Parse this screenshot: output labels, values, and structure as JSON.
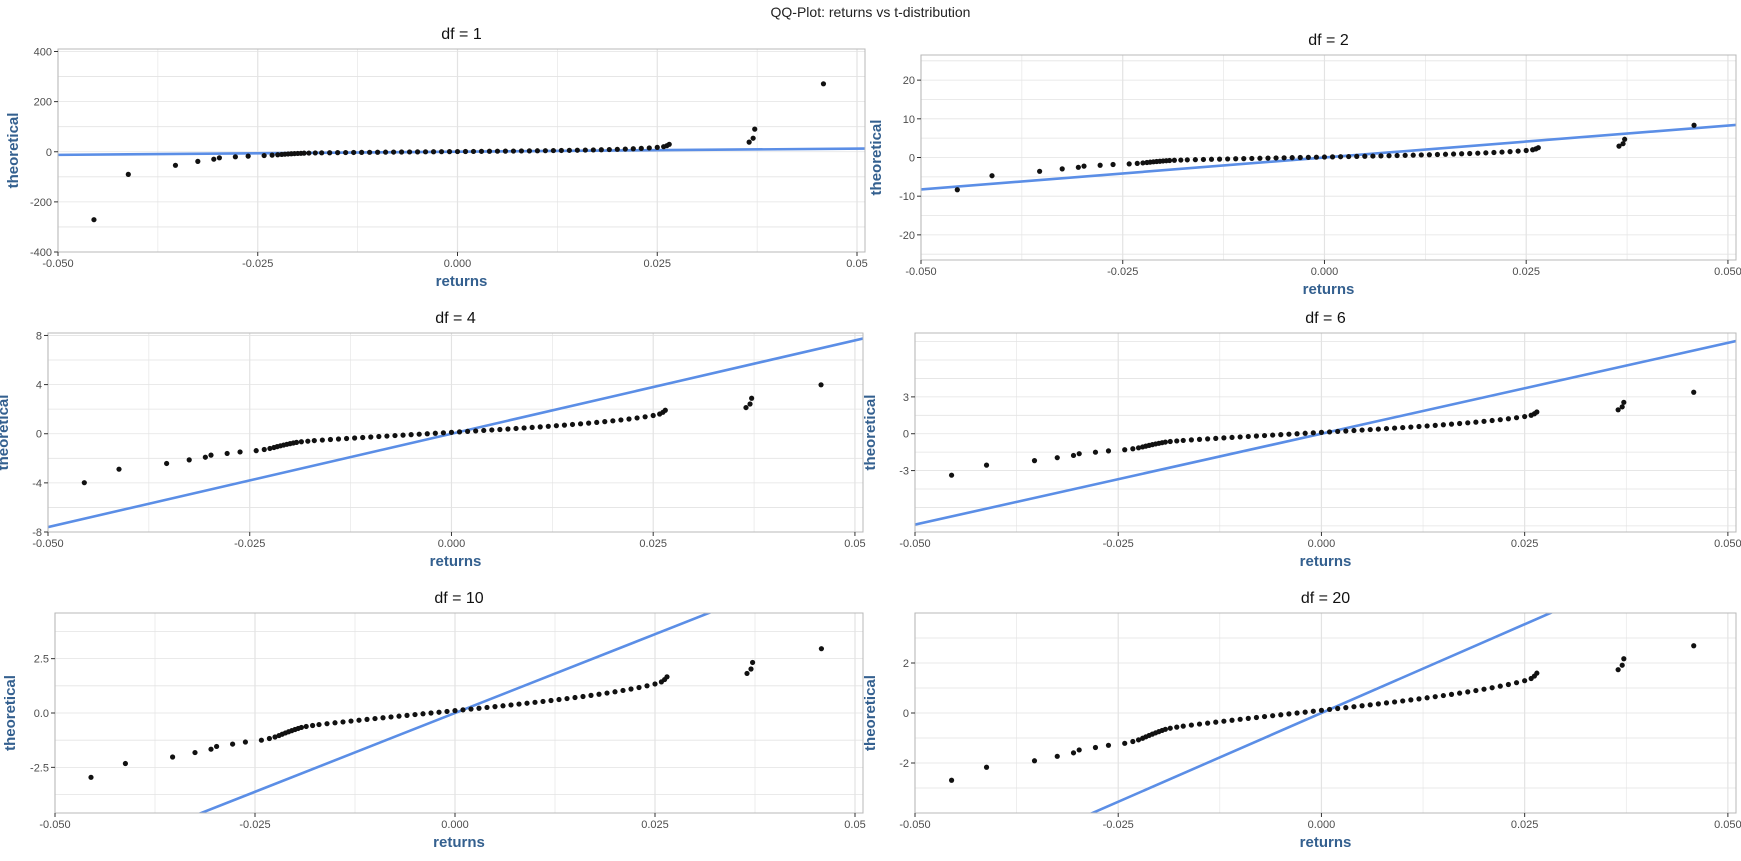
{
  "figure_title": "QQ-Plot: returns vs t-distribution",
  "colors": {
    "points": "#111111",
    "line": "#5b8ee6",
    "axis_label": "#34608f",
    "grid": "#e3e3e3",
    "frame": "#b8b8b8",
    "tick_text": "#4d4d4d"
  },
  "chart_data": [
    {
      "type": "scatter",
      "title": "df =  1",
      "xlabel": "returns",
      "ylabel": "theoretical",
      "xlim": [
        -0.05,
        0.051
      ],
      "ylim": [
        -400,
        410
      ],
      "x_ticks": [
        "-0.050",
        "-0.025",
        "0.000",
        "0.025",
        "0.05"
      ],
      "x_tick_values": [
        -0.05,
        -0.025,
        0,
        0.025,
        0.05
      ],
      "y_ticks": [
        "-400",
        "-200",
        "0",
        "200",
        "400"
      ],
      "y_tick_values": [
        -400,
        -200,
        0,
        200,
        400
      ],
      "df": 1,
      "line": {
        "intercept": 0,
        "slope": 250
      },
      "grid": true
    },
    {
      "type": "scatter",
      "title": "df =  2",
      "xlabel": "returns",
      "ylabel": "theoretical",
      "xlim": [
        -0.05,
        0.051
      ],
      "ylim": [
        -26.5,
        26.5
      ],
      "x_ticks": [
        "-0.050",
        "-0.025",
        "0.000",
        "0.025",
        "0.050"
      ],
      "x_tick_values": [
        -0.05,
        -0.025,
        0,
        0.025,
        0.05
      ],
      "y_ticks": [
        "-20",
        "-10",
        "0",
        "10",
        "20"
      ],
      "y_tick_values": [
        -20,
        -10,
        0,
        10,
        20
      ],
      "df": 2,
      "line": {
        "intercept": 0,
        "slope": 165
      },
      "grid": true
    },
    {
      "type": "scatter",
      "title": "df =  4",
      "xlabel": "returns",
      "ylabel": "theoretical",
      "xlim": [
        -0.05,
        0.051
      ],
      "ylim": [
        -8,
        8.2
      ],
      "x_ticks": [
        "-0.050",
        "-0.025",
        "0.000",
        "0.025",
        "0.05"
      ],
      "x_tick_values": [
        -0.05,
        -0.025,
        0,
        0.025,
        0.05
      ],
      "y_ticks": [
        "-8",
        "-4",
        "0",
        "4",
        "8"
      ],
      "y_tick_values": [
        -8,
        -4,
        0,
        4,
        8
      ],
      "df": 4,
      "line": {
        "intercept": 0,
        "slope": 152
      },
      "grid": true
    },
    {
      "type": "scatter",
      "title": "df =  6",
      "xlabel": "returns",
      "ylabel": "theoretical",
      "xlim": [
        -0.05,
        0.051
      ],
      "ylim": [
        -8,
        8.2
      ],
      "x_ticks": [
        "-0.050",
        "-0.025",
        "0.000",
        "0.025",
        "0.050"
      ],
      "x_tick_values": [
        -0.05,
        -0.025,
        0,
        0.025,
        0.05
      ],
      "y_ticks": [
        "-3",
        "0",
        "3"
      ],
      "y_tick_values": [
        -3,
        0,
        3
      ],
      "df": 6,
      "line": {
        "intercept": 0,
        "slope": 148
      },
      "grid": true
    },
    {
      "type": "scatter",
      "title": "df =  10",
      "xlabel": "returns",
      "ylabel": "theoretical",
      "xlim": [
        -0.05,
        0.051
      ],
      "ylim": [
        -4.6,
        4.6
      ],
      "x_ticks": [
        "-0.050",
        "-0.025",
        "0.000",
        "0.025",
        "0.05"
      ],
      "x_tick_values": [
        -0.05,
        -0.025,
        0,
        0.025,
        0.05
      ],
      "y_ticks": [
        "-2.5",
        "0.0",
        "2.5"
      ],
      "y_tick_values": [
        -2.5,
        0,
        2.5
      ],
      "df": 10,
      "line": {
        "intercept": 0,
        "slope": 145
      },
      "grid": true
    },
    {
      "type": "scatter",
      "title": "df =  20",
      "xlabel": "returns",
      "ylabel": "theoretical",
      "xlim": [
        -0.05,
        0.051
      ],
      "ylim": [
        -4.0,
        4.0
      ],
      "x_ticks": [
        "-0.050",
        "-0.025",
        "0.000",
        "0.025",
        "0.050"
      ],
      "x_tick_values": [
        -0.05,
        -0.025,
        0,
        0.025,
        0.05
      ],
      "y_ticks": [
        "-2",
        "0",
        "2"
      ],
      "y_tick_values": [
        -2,
        0,
        2
      ],
      "df": 20,
      "line": {
        "intercept": 0,
        "slope": 142
      },
      "grid": true
    }
  ],
  "returns_sample": [
    -0.0455,
    -0.0412,
    -0.0353,
    -0.0325,
    -0.0305,
    -0.0298,
    -0.0278,
    -0.0262,
    -0.0242,
    -0.0232,
    -0.0225,
    -0.022,
    -0.0216,
    -0.0212,
    -0.0208,
    -0.0204,
    -0.02,
    -0.0196,
    -0.0192,
    -0.0186,
    -0.0178,
    -0.017,
    -0.016,
    -0.015,
    -0.014,
    -0.013,
    -0.012,
    -0.011,
    -0.01,
    -0.009,
    -0.008,
    -0.007,
    -0.006,
    -0.005,
    -0.004,
    -0.003,
    -0.002,
    -0.001,
    0.0,
    0.001,
    0.002,
    0.003,
    0.004,
    0.005,
    0.006,
    0.007,
    0.008,
    0.009,
    0.01,
    0.011,
    0.012,
    0.013,
    0.014,
    0.015,
    0.016,
    0.017,
    0.018,
    0.019,
    0.02,
    0.021,
    0.022,
    0.023,
    0.024,
    0.025,
    0.0258,
    0.0262,
    0.0265,
    0.0365,
    0.037,
    0.0372,
    0.0458
  ]
}
